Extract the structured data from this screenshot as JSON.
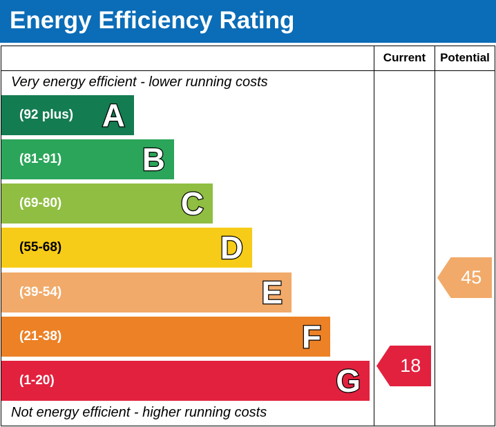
{
  "header": {
    "title": "Energy Efficiency Rating",
    "bg_color": "#0b6cb7"
  },
  "columns": {
    "current": "Current",
    "potential": "Potential"
  },
  "notes": {
    "top": "Very energy efficient - lower running costs",
    "bottom": "Not energy efficient - higher running costs"
  },
  "chart_data": {
    "type": "bar",
    "categories": [
      "A",
      "B",
      "C",
      "D",
      "E",
      "F",
      "G"
    ],
    "ranges": [
      "(92 plus)",
      "(81-91)",
      "(69-80)",
      "(55-68)",
      "(39-54)",
      "(21-38)",
      "(1-20)"
    ],
    "colors": [
      "#137c51",
      "#2ba55a",
      "#8fbe42",
      "#f7cc18",
      "#f1aa69",
      "#ec8126",
      "#e2213e"
    ],
    "current": {
      "value": 18,
      "band": "G",
      "color": "#e2213e"
    },
    "potential": {
      "value": 45,
      "band": "E",
      "color": "#f1aa69"
    }
  }
}
